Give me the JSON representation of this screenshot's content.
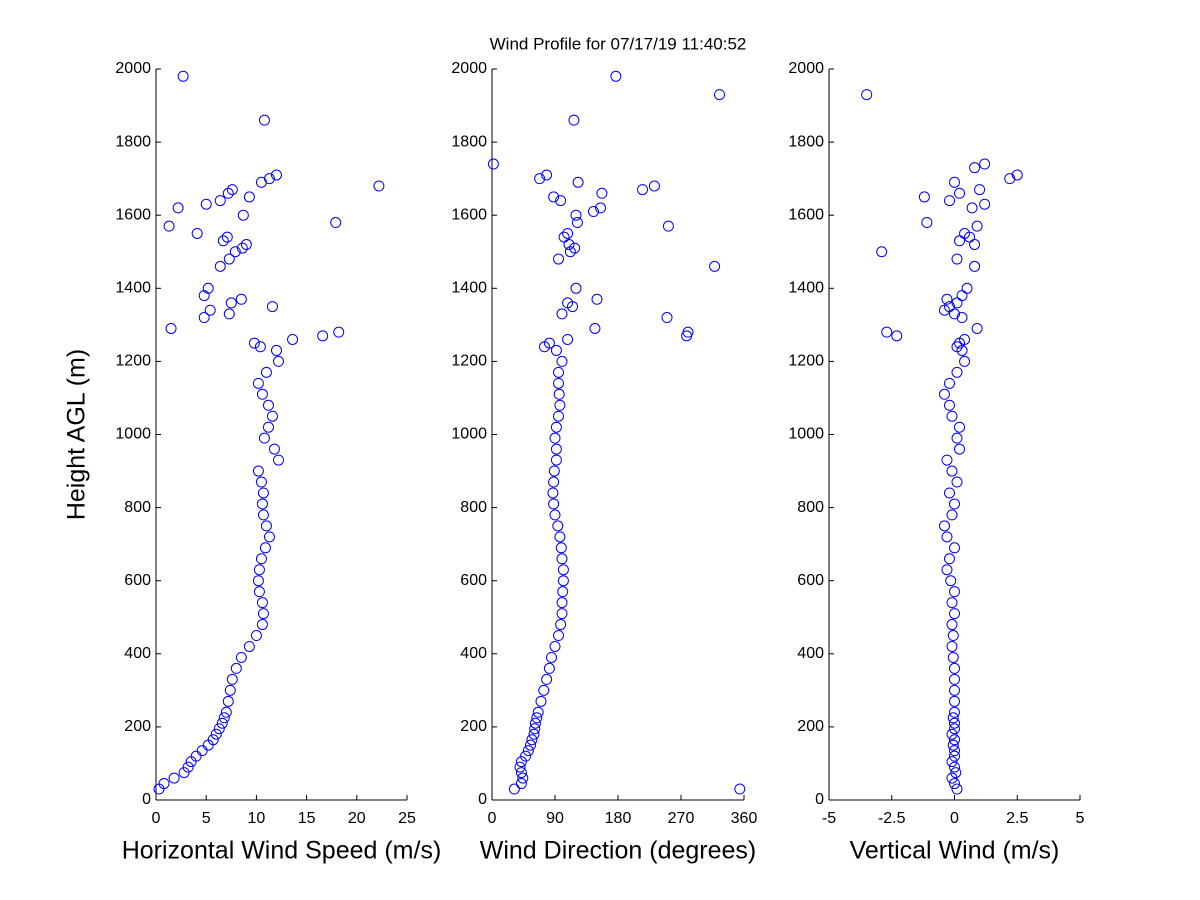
{
  "chart_data": [
    {
      "type": "scatter",
      "title": "Wind Profile for  07/17/19 11:40:52",
      "ylabel": "Height AGL (m)",
      "xlabel": "Horizontal Wind Speed (m/s)",
      "color": "#0000ff",
      "xlim": [
        0,
        25
      ],
      "xticks": [
        0,
        5,
        10,
        15,
        20,
        25
      ],
      "ylim": [
        0,
        2000
      ],
      "yticks": [
        0,
        200,
        400,
        600,
        800,
        1000,
        1200,
        1400,
        1600,
        1800,
        2000
      ],
      "x": [
        0.3,
        0.8,
        1.8,
        2.8,
        3.2,
        3.5,
        4,
        4.6,
        5.2,
        5.7,
        6,
        6.3,
        6.6,
        6.8,
        7,
        7.2,
        7.4,
        7.6,
        8,
        8.5,
        9.3,
        10,
        10.6,
        10.7,
        10.6,
        10.3,
        10.2,
        10.3,
        10.5,
        10.9,
        11.3,
        11,
        10.7,
        10.6,
        10.7,
        10.5,
        10.2,
        12.2,
        11.8,
        10.8,
        11.2,
        11.6,
        11.2,
        10.6,
        10.2,
        11,
        12.2,
        12,
        2.7,
        10.8,
        12,
        11.3,
        10.5,
        22.2,
        7.6,
        7.2,
        9.3,
        6.4,
        5,
        2.2,
        8.7,
        17.9,
        1.3,
        4.1,
        7.1,
        6.7,
        9,
        8.6,
        7.9,
        7.3,
        6.4,
        8.5,
        4.8,
        5.2,
        7.5,
        11.6,
        5.4,
        7.3,
        4.8,
        1.5,
        18.2,
        16.6,
        13.6,
        9.8,
        10.4
      ],
      "y": [
        30,
        45,
        60,
        75,
        90,
        105,
        120,
        135,
        150,
        165,
        180,
        195,
        210,
        225,
        240,
        270,
        300,
        330,
        360,
        390,
        420,
        450,
        480,
        510,
        540,
        570,
        600,
        630,
        660,
        690,
        720,
        750,
        780,
        810,
        840,
        870,
        900,
        930,
        960,
        990,
        1020,
        1050,
        1080,
        1110,
        1140,
        1170,
        1200,
        1230,
        1980,
        1860,
        1710,
        1700,
        1690,
        1680,
        1670,
        1660,
        1650,
        1640,
        1630,
        1620,
        1600,
        1580,
        1570,
        1550,
        1540,
        1530,
        1520,
        1510,
        1500,
        1480,
        1460,
        1370,
        1380,
        1400,
        1360,
        1350,
        1340,
        1330,
        1320,
        1290,
        1280,
        1270,
        1260,
        1250,
        1240
      ]
    },
    {
      "type": "scatter",
      "xlabel": "Wind Direction (degrees)",
      "color": "#0000ff",
      "xlim": [
        0,
        360
      ],
      "xticks": [
        0,
        90,
        180,
        270,
        360
      ],
      "ylim": [
        0,
        2000
      ],
      "yticks": [
        0,
        200,
        400,
        600,
        800,
        1000,
        1200,
        1400,
        1600,
        1800,
        2000
      ],
      "x": [
        32,
        42,
        44,
        42,
        40,
        42,
        48,
        52,
        55,
        57,
        60,
        61,
        62,
        64,
        66,
        70,
        74,
        78,
        82,
        85,
        90,
        95,
        98,
        100,
        100,
        101,
        102,
        102,
        100,
        99,
        97,
        94,
        90,
        88,
        87,
        88,
        89,
        92,
        92,
        90,
        92,
        95,
        97,
        96,
        95,
        95,
        100,
        92,
        354,
        177,
        325,
        117,
        2,
        78,
        68,
        123,
        232,
        215,
        157,
        88,
        98,
        155,
        145,
        120,
        122,
        252,
        108,
        103,
        110,
        118,
        112,
        95,
        318,
        120,
        150,
        108,
        115,
        100,
        250,
        147,
        280,
        278,
        108,
        82,
        75
      ],
      "y": [
        30,
        45,
        60,
        75,
        90,
        105,
        120,
        135,
        150,
        165,
        180,
        195,
        210,
        225,
        240,
        270,
        300,
        330,
        360,
        390,
        420,
        450,
        480,
        510,
        540,
        570,
        600,
        630,
        660,
        690,
        720,
        750,
        780,
        810,
        840,
        870,
        900,
        930,
        960,
        990,
        1020,
        1050,
        1080,
        1110,
        1140,
        1170,
        1200,
        1230,
        30,
        1980,
        1930,
        1860,
        1740,
        1710,
        1700,
        1690,
        1680,
        1670,
        1660,
        1650,
        1640,
        1620,
        1610,
        1600,
        1580,
        1570,
        1550,
        1540,
        1520,
        1510,
        1500,
        1480,
        1460,
        1400,
        1370,
        1360,
        1350,
        1330,
        1320,
        1290,
        1280,
        1270,
        1260,
        1250,
        1240
      ]
    },
    {
      "type": "scatter",
      "xlabel": "Vertical Wind (m/s)",
      "color": "#0000ff",
      "xlim": [
        -5,
        5
      ],
      "xticks": [
        -5,
        -2.5,
        0,
        2.5,
        5
      ],
      "ylim": [
        0,
        2000
      ],
      "yticks": [
        0,
        200,
        400,
        600,
        800,
        1000,
        1200,
        1400,
        1600,
        1800,
        2000
      ],
      "x": [
        0.1,
        0,
        -0.1,
        0.05,
        0,
        -0.1,
        0,
        0,
        -0.05,
        0,
        -0.1,
        0,
        0,
        -0.05,
        0,
        0,
        0,
        0,
        0,
        -0.05,
        -0.1,
        -0.05,
        -0.1,
        0,
        -0.1,
        0,
        -0.15,
        -0.3,
        -0.2,
        0,
        -0.3,
        -0.4,
        -0.1,
        0,
        -0.2,
        0.1,
        -0.1,
        -0.3,
        0.2,
        0.1,
        0.2,
        -0.1,
        -0.2,
        -0.4,
        -0.2,
        0.1,
        0.4,
        0.3,
        -3.5,
        0.8,
        1.2,
        2.5,
        2.2,
        0,
        1,
        0.2,
        -1.2,
        -0.2,
        1.2,
        0.7,
        -1.1,
        0.9,
        0.4,
        0.6,
        0.2,
        0.8,
        0.1,
        0.8,
        -2.9,
        0.5,
        0.3,
        -0.3,
        0.1,
        -0.2,
        -0.4,
        0,
        0.3,
        0.9,
        -2.7,
        -2.3,
        0.4,
        0.2,
        0.1
      ],
      "y": [
        30,
        45,
        60,
        75,
        90,
        105,
        120,
        135,
        150,
        165,
        180,
        195,
        210,
        225,
        240,
        270,
        300,
        330,
        360,
        390,
        420,
        450,
        480,
        510,
        540,
        570,
        600,
        630,
        660,
        690,
        720,
        750,
        780,
        810,
        840,
        870,
        900,
        930,
        960,
        990,
        1020,
        1050,
        1080,
        1110,
        1140,
        1170,
        1200,
        1230,
        1930,
        1730,
        1740,
        1710,
        1700,
        1690,
        1670,
        1660,
        1650,
        1640,
        1630,
        1620,
        1580,
        1570,
        1550,
        1540,
        1530,
        1520,
        1480,
        1460,
        1500,
        1400,
        1380,
        1370,
        1360,
        1350,
        1340,
        1330,
        1320,
        1290,
        1280,
        1270,
        1260,
        1250,
        1240
      ]
    }
  ]
}
